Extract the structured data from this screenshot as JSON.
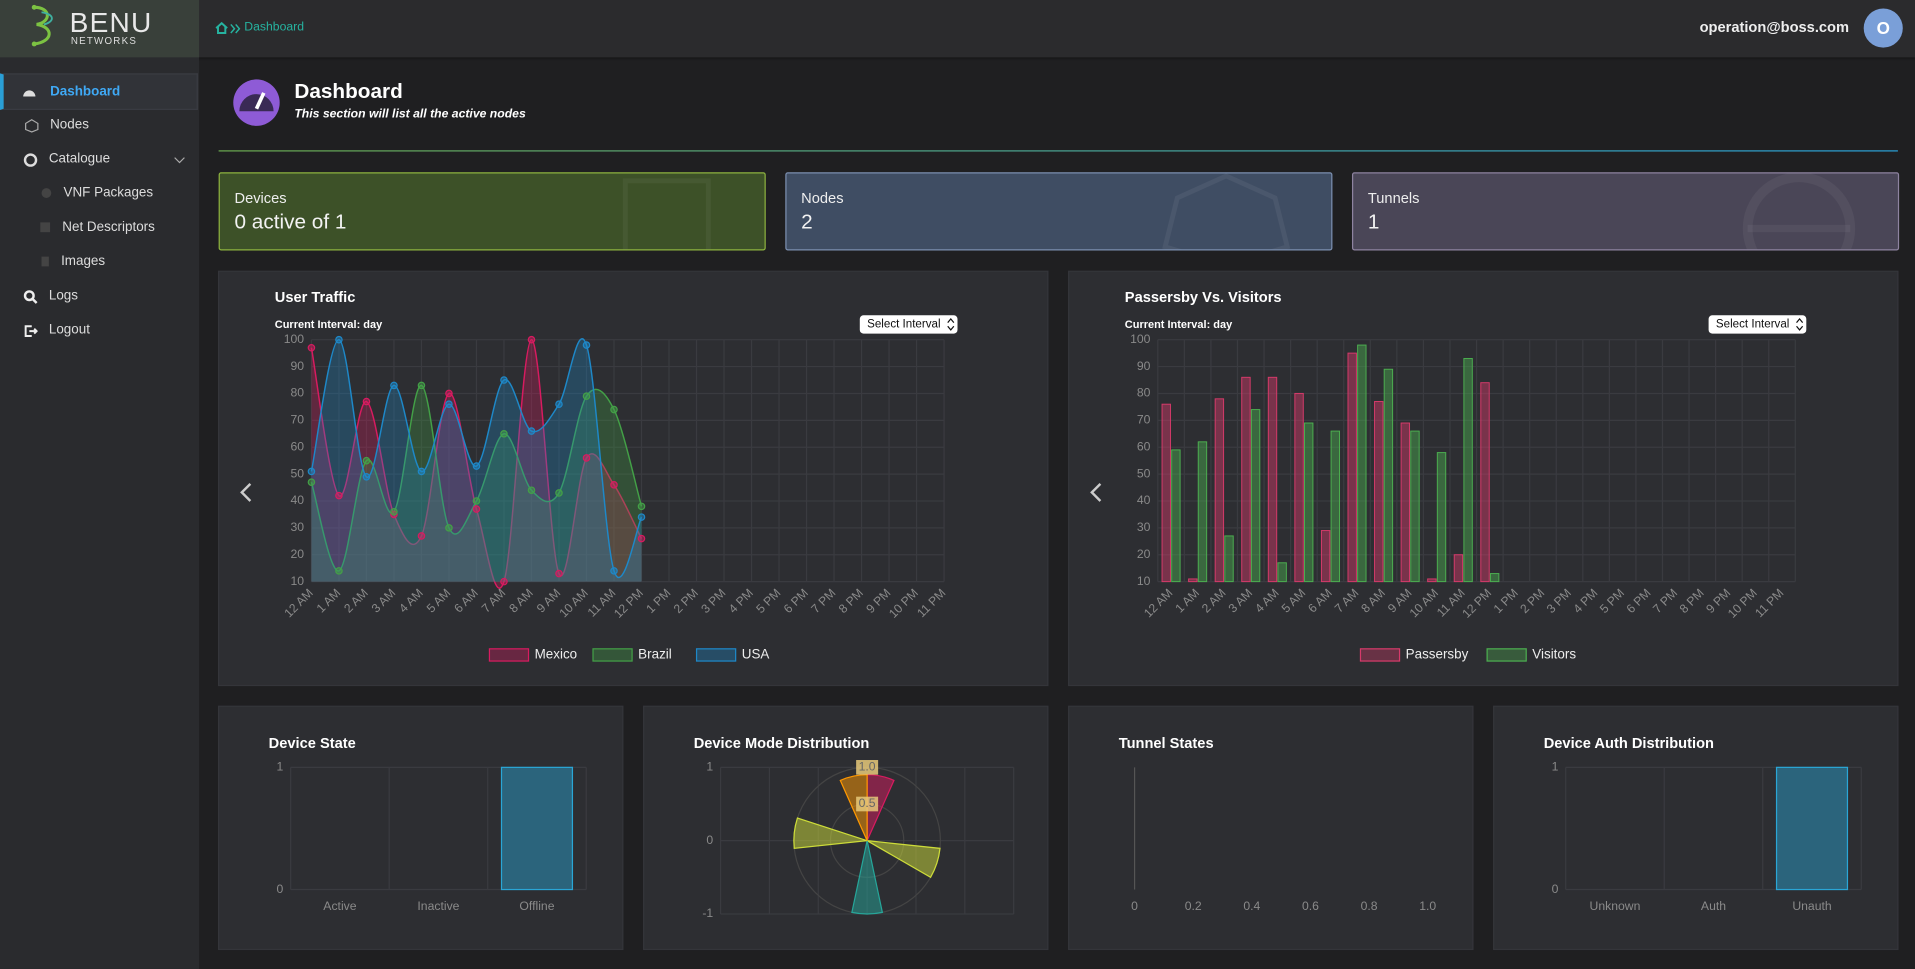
{
  "topbar": {
    "logo": "BENU",
    "logo_sub": "NETWORKS",
    "breadcrumb": "Dashboard",
    "user": "operation@boss.com",
    "avatar": "O"
  },
  "sidebar": {
    "items": [
      "Dashboard",
      "Nodes",
      "Catalogue",
      "VNF Packages",
      "Net Descriptors",
      "Images",
      "Logs",
      "Logout"
    ]
  },
  "header": {
    "title": "Dashboard",
    "subtitle": "This section will list all the active nodes"
  },
  "cards": [
    {
      "label": "Devices",
      "value": "0 active of 1"
    },
    {
      "label": "Nodes",
      "value": 2
    },
    {
      "label": "Tunnels",
      "value": 1
    }
  ],
  "chart_data": [
    {
      "type": "line",
      "title": "User Traffic",
      "subtitle": "Current Interval: day",
      "interval_button": "Select Interval",
      "categories": [
        "12 AM",
        "1 AM",
        "2 AM",
        "3 AM",
        "4 AM",
        "5 AM",
        "6 AM",
        "7 AM",
        "8 AM",
        "9 AM",
        "10 AM",
        "11 AM",
        "12 PM",
        "1 PM",
        "2 PM",
        "3 PM",
        "4 PM",
        "5 PM",
        "6 PM",
        "7 PM",
        "8 PM",
        "9 PM",
        "10 PM",
        "11 PM"
      ],
      "series": [
        {
          "name": "Mexico",
          "color": "#d81b60",
          "values": [
            97,
            42,
            77,
            35,
            27,
            80,
            37,
            10,
            100,
            13,
            56,
            46,
            26,
            null,
            null,
            null,
            null,
            null,
            null,
            null,
            null,
            null,
            null,
            null
          ]
        },
        {
          "name": "Brazil",
          "color": "#43a047",
          "values": [
            47,
            14,
            55,
            36,
            83,
            30,
            40,
            65,
            44,
            43,
            79,
            74,
            38,
            null,
            null,
            null,
            null,
            null,
            null,
            null,
            null,
            null,
            null,
            null
          ]
        },
        {
          "name": "USA",
          "color": "#1e88c8",
          "values": [
            51,
            100,
            49,
            83,
            51,
            76,
            53,
            85,
            66,
            76,
            98,
            14,
            34,
            null,
            null,
            null,
            null,
            null,
            null,
            null,
            null,
            null,
            null,
            null
          ]
        }
      ],
      "ylim": [
        10,
        100
      ],
      "yticks": [
        10,
        20,
        30,
        40,
        50,
        60,
        70,
        80,
        90,
        100
      ],
      "grid": true,
      "smooth": true
    },
    {
      "type": "bar",
      "title": "Passersby Vs. Visitors",
      "subtitle": "Current Interval: day",
      "interval_button": "Select Interval",
      "categories": [
        "12 AM",
        "1 AM",
        "2 AM",
        "3 AM",
        "4 AM",
        "5 AM",
        "6 AM",
        "7 AM",
        "8 AM",
        "9 AM",
        "10 AM",
        "11 AM",
        "12 PM",
        "1 PM",
        "2 PM",
        "3 PM",
        "4 PM",
        "5 PM",
        "6 PM",
        "7 PM",
        "8 PM",
        "9 PM",
        "10 PM",
        "11 PM"
      ],
      "series": [
        {
          "name": "Passersby",
          "color": "#d63a6a",
          "values": [
            76,
            11,
            78,
            86,
            86,
            80,
            29,
            95,
            77,
            69,
            11,
            20,
            84,
            null,
            null,
            null,
            null,
            null,
            null,
            null,
            null,
            null,
            null,
            null
          ]
        },
        {
          "name": "Visitors",
          "color": "#4caf50",
          "values": [
            59,
            62,
            27,
            74,
            17,
            69,
            66,
            98,
            89,
            66,
            58,
            93,
            13,
            null,
            null,
            null,
            null,
            null,
            null,
            null,
            null,
            null,
            null,
            null
          ]
        }
      ],
      "ylim": [
        10,
        100
      ],
      "yticks": [
        10,
        20,
        30,
        40,
        50,
        60,
        70,
        80,
        90,
        100
      ],
      "grid": true
    },
    {
      "type": "bar",
      "title": "Device State",
      "categories": [
        "Active",
        "Inactive",
        "Offline"
      ],
      "values": [
        0,
        0,
        1
      ],
      "color": "#2aa6d6",
      "ylim": [
        0,
        1
      ],
      "yticks": [
        0,
        1
      ],
      "grid": true
    },
    {
      "type": "polarArea",
      "title": "Device Mode Distribution",
      "values": [
        0.9,
        0,
        0,
        0,
        1,
        0,
        0,
        1,
        0,
        0,
        0,
        1,
        0,
        0,
        0.9
      ],
      "colors": [
        "#d81b60",
        "#ff9800",
        "#cddc39",
        "#26a69a",
        "#cddc39",
        "#d81b60",
        "#ff9800",
        "#26a69a",
        "#cddc39",
        "#d81b60",
        "#ff9800",
        "#cddc39",
        "#26a69a",
        "#d81b60",
        "#ff9800"
      ],
      "rlim": [
        0,
        1
      ],
      "rticks": [
        {
          "value": 0.5,
          "label": "0.5"
        },
        {
          "value": 1,
          "label": "1.0"
        }
      ],
      "ylim": [
        -1,
        1
      ],
      "yticks": [
        -1,
        0,
        1
      ],
      "grid": true
    },
    {
      "type": "hbar",
      "title": "Tunnel States",
      "xlim": [
        0,
        1
      ],
      "xticks": [
        0,
        0.2,
        0.4,
        0.6,
        0.8,
        {
          "value": 1,
          "label": "1.0"
        }
      ],
      "grid": true
    },
    {
      "type": "bar",
      "title": "Device Auth Distribution",
      "categories": [
        "Unknown",
        "Auth",
        "Unauth"
      ],
      "values": [
        0,
        0,
        1
      ],
      "color": "#2aa6d6",
      "ylim": [
        0,
        1
      ],
      "yticks": [
        0,
        1
      ],
      "grid": true
    }
  ]
}
